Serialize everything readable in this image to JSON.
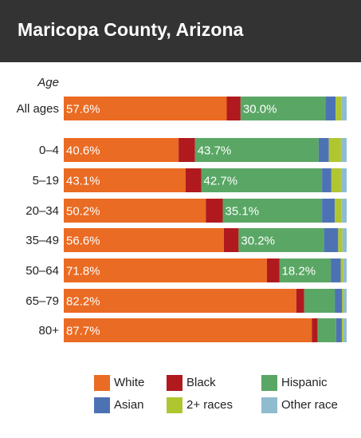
{
  "header": {
    "title": "Maricopa County, Arizona"
  },
  "chart_data": {
    "type": "bar",
    "orientation": "horizontal",
    "stacked": true,
    "percent_stacked": true,
    "y_title": "Age",
    "categories": [
      "All ages",
      "0–4",
      "5–19",
      "20–34",
      "35–49",
      "50–64",
      "65–79",
      "80+"
    ],
    "series": [
      {
        "name": "White",
        "color": "#ea6b23",
        "values": [
          57.6,
          40.6,
          43.1,
          50.2,
          56.6,
          71.8,
          82.2,
          87.7
        ],
        "labels": [
          "57.6%",
          "40.6%",
          "43.1%",
          "50.2%",
          "56.6%",
          "71.8%",
          "82.2%",
          "87.7%"
        ]
      },
      {
        "name": "Black",
        "color": "#b01a1e",
        "values": [
          4.9,
          5.8,
          5.5,
          6.0,
          5.2,
          4.4,
          2.8,
          2.0
        ],
        "labels": []
      },
      {
        "name": "Hispanic",
        "color": "#5aa765",
        "values": [
          30.0,
          43.7,
          42.7,
          35.1,
          30.2,
          18.2,
          10.8,
          6.6
        ],
        "labels": [
          "30.0%",
          "43.7%",
          "42.7%",
          "35.1%",
          "30.2%",
          "18.2%",
          "",
          ""
        ]
      },
      {
        "name": "Asian",
        "color": "#4d72b4",
        "values": [
          3.6,
          3.6,
          3.3,
          4.5,
          5.0,
          3.5,
          2.6,
          2.0
        ],
        "labels": []
      },
      {
        "name": "2+ races",
        "color": "#b0c630",
        "values": [
          2.0,
          4.3,
          3.4,
          2.3,
          1.5,
          0.9,
          0.6,
          0.5
        ],
        "labels": []
      },
      {
        "name": "Other race",
        "color": "#8fbccf",
        "values": [
          1.9,
          2.0,
          2.0,
          1.9,
          1.5,
          1.2,
          1.0,
          1.2
        ],
        "labels": []
      }
    ],
    "xlim": [
      0,
      100
    ]
  }
}
